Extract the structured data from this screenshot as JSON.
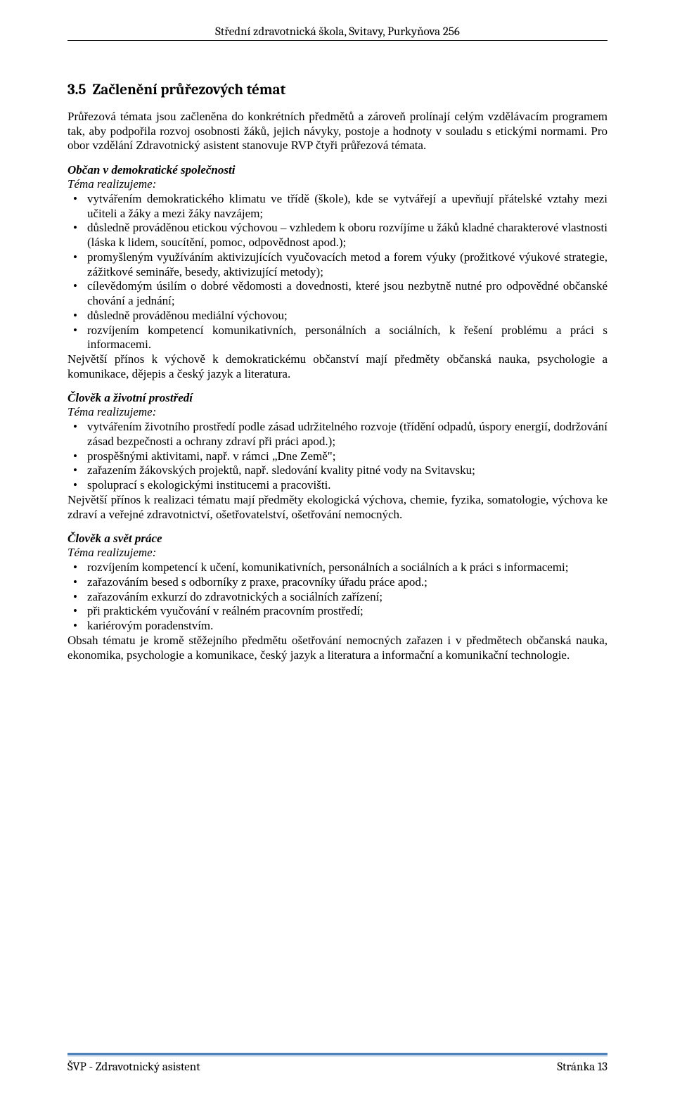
{
  "header": {
    "text": "Střední zdravotnická škola, Svitavy, Purkyňova 256"
  },
  "section": {
    "number": "3.5",
    "title": "Začlenění průřezových témat"
  },
  "intro": {
    "p1": "Průřezová témata jsou začleněna do konkrétních předmětů a zároveň prolínají celým vzdělávacím programem tak, aby podpořila rozvoj osobnosti žáků, jejich návyky, postoje a hodnoty v souladu s etickými normami. Pro obor vzdělání Zdravotnický asistent stanovuje RVP čtyři průřezová témata."
  },
  "theme1": {
    "heading": "Občan v demokratické společnosti",
    "lead": "Téma realizujeme:",
    "items": [
      "vytvářením demokratického klimatu ve třídě (škole), kde se vytvářejí a upevňují přátelské vztahy mezi učiteli a žáky a mezi žáky navzájem;",
      "důsledně prováděnou etickou výchovou – vzhledem k oboru rozvíjíme u žáků kladné charakterové vlastnosti (láska k lidem, soucítění, pomoc, odpovědnost apod.);",
      "promyšleným využíváním aktivizujících vyučovacích metod a forem výuky (prožitkové výukové strategie, zážitkové semináře, besedy, aktivizující metody);",
      "cílevědomým úsilím o dobré vědomosti a dovednosti, které jsou nezbytně nutné pro odpovědné občanské chování a jednání;",
      "důsledně prováděnou mediální výchovou;",
      "rozvíjením kompetencí komunikativních, personálních a sociálních, k řešení problému a práci s informacemi."
    ],
    "after": "Největší přínos k výchově k demokratickému občanství mají předměty občanská nauka, psychologie a komunikace, dějepis a český jazyk a literatura."
  },
  "theme2": {
    "heading": "Člověk a životní prostředí",
    "lead": "Téma realizujeme:",
    "items": [
      "vytvářením životního prostředí podle zásad udržitelného rozvoje (třídění odpadů, úspory energií, dodržování zásad bezpečnosti a ochrany zdraví při práci apod.);",
      "prospěšnými aktivitami, např. v rámci „Dne Země\";",
      "zařazením žákovských projektů, např. sledování kvality pitné vody na Svitavsku;",
      "spoluprací s ekologickými institucemi a pracovišti."
    ],
    "after": "Největší přínos k realizaci tématu mají předměty ekologická výchova, chemie, fyzika, somatologie, výchova ke zdraví a veřejné zdravotnictví, ošetřovatelství, ošetřování nemocných."
  },
  "theme3": {
    "heading": "Člověk a svět práce",
    "lead": "Téma realizujeme:",
    "items": [
      "rozvíjením kompetencí k učení, komunikativních, personálních a sociálních a k práci s informacemi;",
      "zařazováním besed s odborníky z praxe, pracovníky úřadu práce apod.;",
      "zařazováním exkurzí do zdravotnických a sociálních zařízení;",
      "při praktickém vyučování v reálném pracovním prostředí;",
      "kariérovým poradenstvím."
    ],
    "after": "Obsah tématu je kromě stěžejního předmětu ošetřování nemocných zařazen i v předmětech občanská nauka, ekonomika, psychologie a komunikace, český jazyk a literatura a informační a komunikační technologie."
  },
  "footer": {
    "left": "ŠVP - Zdravotnický asistent",
    "right": "Stránka 13"
  },
  "colors": {
    "rule": "#4f81bd",
    "text": "#000000",
    "bg": "#ffffff"
  }
}
